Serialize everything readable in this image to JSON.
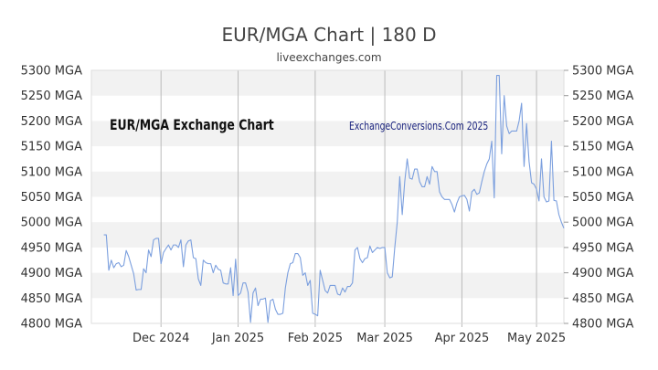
{
  "chart_data": {
    "type": "line",
    "title": "EUR/MGA Chart | 180 D",
    "subtitle": "liveexchanges.com",
    "inner_title": "EUR/MGA Exchange Chart",
    "watermark": "ExchangeConversions.Com 2025",
    "xlabel": "",
    "ylabel": "",
    "y_unit": "MGA",
    "ylim": [
      4800,
      5300
    ],
    "y_ticks": [
      4800,
      4850,
      4900,
      4950,
      5000,
      5050,
      5100,
      5150,
      5200,
      5250,
      5300
    ],
    "y_tick_labels": [
      "4800 MGA",
      "4850 MGA",
      "4900 MGA",
      "4950 MGA",
      "5000 MGA",
      "5050 MGA",
      "5100 MGA",
      "5150 MGA",
      "5200 MGA",
      "5250 MGA",
      "5300 MGA"
    ],
    "xlim": [
      "2024-11-03",
      "2025-05-12"
    ],
    "x_ticks": [
      {
        "date": "2024-12-01",
        "label": "Dec 2024"
      },
      {
        "date": "2025-01-01",
        "label": "Jan 2025"
      },
      {
        "date": "2025-02-01",
        "label": "Feb 2025"
      },
      {
        "date": "2025-03-01",
        "label": "Mar 2025"
      },
      {
        "date": "2025-04-01",
        "label": "Apr 2025"
      },
      {
        "date": "2025-05-01",
        "label": "May 2025"
      }
    ],
    "grid": true,
    "legend": "none",
    "series": [
      {
        "color": "#7b9fde",
        "points": [
          [
            "2024-11-08",
            4975
          ],
          [
            "2024-11-09",
            4975
          ],
          [
            "2024-11-10",
            4905
          ],
          [
            "2024-11-11",
            4925
          ],
          [
            "2024-11-12",
            4910
          ],
          [
            "2024-11-13",
            4918
          ],
          [
            "2024-11-14",
            4920
          ],
          [
            "2024-11-15",
            4912
          ],
          [
            "2024-11-16",
            4915
          ],
          [
            "2024-11-17",
            4944
          ],
          [
            "2024-11-18",
            4932
          ],
          [
            "2024-11-19",
            4915
          ],
          [
            "2024-11-20",
            4898
          ],
          [
            "2024-11-21",
            4866
          ],
          [
            "2024-11-22",
            4867
          ],
          [
            "2024-11-23",
            4867
          ],
          [
            "2024-11-24",
            4908
          ],
          [
            "2024-11-25",
            4900
          ],
          [
            "2024-11-26",
            4945
          ],
          [
            "2024-11-27",
            4932
          ],
          [
            "2024-11-28",
            4965
          ],
          [
            "2024-11-29",
            4968
          ],
          [
            "2024-11-30",
            4968
          ],
          [
            "2024-12-01",
            4918
          ],
          [
            "2024-12-02",
            4940
          ],
          [
            "2024-12-03",
            4948
          ],
          [
            "2024-12-04",
            4955
          ],
          [
            "2024-12-05",
            4945
          ],
          [
            "2024-12-06",
            4955
          ],
          [
            "2024-12-07",
            4955
          ],
          [
            "2024-12-08",
            4950
          ],
          [
            "2024-12-09",
            4965
          ],
          [
            "2024-12-10",
            4912
          ],
          [
            "2024-12-11",
            4955
          ],
          [
            "2024-12-12",
            4963
          ],
          [
            "2024-12-13",
            4965
          ],
          [
            "2024-12-14",
            4930
          ],
          [
            "2024-12-15",
            4928
          ],
          [
            "2024-12-16",
            4888
          ],
          [
            "2024-12-17",
            4875
          ],
          [
            "2024-12-18",
            4925
          ],
          [
            "2024-12-19",
            4920
          ],
          [
            "2024-12-20",
            4918
          ],
          [
            "2024-12-21",
            4918
          ],
          [
            "2024-12-22",
            4900
          ],
          [
            "2024-12-23",
            4915
          ],
          [
            "2024-12-24",
            4907
          ],
          [
            "2024-12-25",
            4905
          ],
          [
            "2024-12-26",
            4880
          ],
          [
            "2024-12-27",
            4878
          ],
          [
            "2024-12-28",
            4878
          ],
          [
            "2024-12-29",
            4910
          ],
          [
            "2024-12-30",
            4855
          ],
          [
            "2024-12-31",
            4927
          ],
          [
            "2025-01-01",
            4855
          ],
          [
            "2025-01-02",
            4860
          ],
          [
            "2025-01-03",
            4880
          ],
          [
            "2025-01-04",
            4880
          ],
          [
            "2025-01-05",
            4862
          ],
          [
            "2025-01-06",
            4802
          ],
          [
            "2025-01-07",
            4860
          ],
          [
            "2025-01-08",
            4870
          ],
          [
            "2025-01-09",
            4835
          ],
          [
            "2025-01-10",
            4848
          ],
          [
            "2025-01-11",
            4848
          ],
          [
            "2025-01-12",
            4850
          ],
          [
            "2025-01-13",
            4802
          ],
          [
            "2025-01-14",
            4845
          ],
          [
            "2025-01-15",
            4848
          ],
          [
            "2025-01-16",
            4828
          ],
          [
            "2025-01-17",
            4818
          ],
          [
            "2025-01-18",
            4818
          ],
          [
            "2025-01-19",
            4820
          ],
          [
            "2025-01-20",
            4870
          ],
          [
            "2025-01-21",
            4900
          ],
          [
            "2025-01-22",
            4918
          ],
          [
            "2025-01-23",
            4920
          ],
          [
            "2025-01-24",
            4938
          ],
          [
            "2025-01-25",
            4938
          ],
          [
            "2025-01-26",
            4930
          ],
          [
            "2025-01-27",
            4895
          ],
          [
            "2025-01-28",
            4900
          ],
          [
            "2025-01-29",
            4875
          ],
          [
            "2025-01-30",
            4885
          ],
          [
            "2025-01-31",
            4820
          ],
          [
            "2025-02-01",
            4818
          ],
          [
            "2025-02-02",
            4815
          ],
          [
            "2025-02-03",
            4905
          ],
          [
            "2025-02-04",
            4885
          ],
          [
            "2025-02-05",
            4865
          ],
          [
            "2025-02-06",
            4860
          ],
          [
            "2025-02-07",
            4875
          ],
          [
            "2025-02-08",
            4875
          ],
          [
            "2025-02-09",
            4875
          ],
          [
            "2025-02-10",
            4858
          ],
          [
            "2025-02-11",
            4856
          ],
          [
            "2025-02-12",
            4870
          ],
          [
            "2025-02-13",
            4862
          ],
          [
            "2025-02-14",
            4873
          ],
          [
            "2025-02-15",
            4873
          ],
          [
            "2025-02-16",
            4880
          ],
          [
            "2025-02-17",
            4945
          ],
          [
            "2025-02-18",
            4950
          ],
          [
            "2025-02-19",
            4928
          ],
          [
            "2025-02-20",
            4920
          ],
          [
            "2025-02-21",
            4928
          ],
          [
            "2025-02-22",
            4930
          ],
          [
            "2025-02-23",
            4953
          ],
          [
            "2025-02-24",
            4940
          ],
          [
            "2025-02-25",
            4945
          ],
          [
            "2025-02-26",
            4950
          ],
          [
            "2025-02-27",
            4948
          ],
          [
            "2025-02-28",
            4950
          ],
          [
            "2025-03-01",
            4950
          ],
          [
            "2025-03-02",
            4900
          ],
          [
            "2025-03-03",
            4890
          ],
          [
            "2025-03-04",
            4892
          ],
          [
            "2025-03-05",
            4950
          ],
          [
            "2025-03-06",
            5000
          ],
          [
            "2025-03-07",
            5090
          ],
          [
            "2025-03-08",
            5015
          ],
          [
            "2025-03-09",
            5080
          ],
          [
            "2025-03-10",
            5125
          ],
          [
            "2025-03-11",
            5087
          ],
          [
            "2025-03-12",
            5085
          ],
          [
            "2025-03-13",
            5105
          ],
          [
            "2025-03-14",
            5105
          ],
          [
            "2025-03-15",
            5080
          ],
          [
            "2025-03-16",
            5070
          ],
          [
            "2025-03-17",
            5070
          ],
          [
            "2025-03-18",
            5090
          ],
          [
            "2025-03-19",
            5075
          ],
          [
            "2025-03-20",
            5110
          ],
          [
            "2025-03-21",
            5100
          ],
          [
            "2025-03-22",
            5100
          ],
          [
            "2025-03-23",
            5060
          ],
          [
            "2025-03-24",
            5050
          ],
          [
            "2025-03-25",
            5045
          ],
          [
            "2025-03-26",
            5045
          ],
          [
            "2025-03-27",
            5045
          ],
          [
            "2025-03-28",
            5035
          ],
          [
            "2025-03-29",
            5020
          ],
          [
            "2025-03-30",
            5038
          ],
          [
            "2025-03-31",
            5050
          ],
          [
            "2025-04-01",
            5052
          ],
          [
            "2025-04-02",
            5053
          ],
          [
            "2025-04-03",
            5045
          ],
          [
            "2025-04-04",
            5022
          ],
          [
            "2025-04-05",
            5060
          ],
          [
            "2025-04-06",
            5065
          ],
          [
            "2025-04-07",
            5055
          ],
          [
            "2025-04-08",
            5058
          ],
          [
            "2025-04-09",
            5080
          ],
          [
            "2025-04-10",
            5100
          ],
          [
            "2025-04-11",
            5115
          ],
          [
            "2025-04-12",
            5125
          ],
          [
            "2025-04-13",
            5160
          ],
          [
            "2025-04-14",
            5048
          ],
          [
            "2025-04-15",
            5290
          ],
          [
            "2025-04-16",
            5290
          ],
          [
            "2025-04-17",
            5135
          ],
          [
            "2025-04-18",
            5250
          ],
          [
            "2025-04-19",
            5190
          ],
          [
            "2025-04-20",
            5175
          ],
          [
            "2025-04-21",
            5180
          ],
          [
            "2025-04-22",
            5180
          ],
          [
            "2025-04-23",
            5180
          ],
          [
            "2025-04-24",
            5200
          ],
          [
            "2025-04-25",
            5235
          ],
          [
            "2025-04-26",
            5110
          ],
          [
            "2025-04-27",
            5195
          ],
          [
            "2025-04-28",
            5120
          ],
          [
            "2025-04-29",
            5078
          ],
          [
            "2025-04-30",
            5075
          ],
          [
            "2025-05-01",
            5065
          ],
          [
            "2025-05-02",
            5042
          ],
          [
            "2025-05-03",
            5125
          ],
          [
            "2025-05-04",
            5050
          ],
          [
            "2025-05-05",
            5040
          ],
          [
            "2025-05-06",
            5042
          ],
          [
            "2025-05-07",
            5160
          ],
          [
            "2025-05-08",
            5043
          ],
          [
            "2025-05-09",
            5042
          ],
          [
            "2025-05-10",
            5015
          ],
          [
            "2025-05-11",
            5000
          ],
          [
            "2025-05-12",
            4988
          ]
        ]
      }
    ]
  }
}
